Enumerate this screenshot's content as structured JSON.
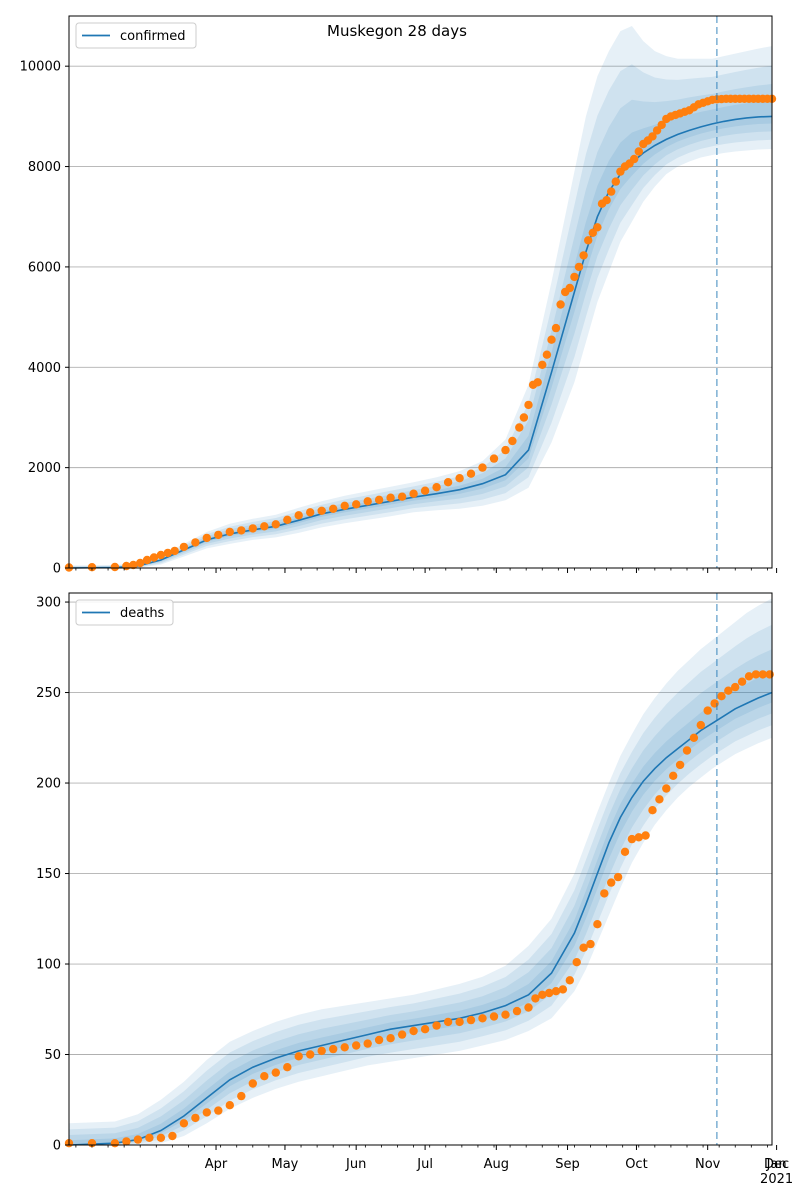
{
  "figure": {
    "title": "Muskegon 28 days"
  },
  "chart_data": [
    {
      "type": "line",
      "legend": [
        "confirmed"
      ],
      "legend_position": "top-left",
      "xlim": [
        0,
        306
      ],
      "ylim": [
        0,
        11000
      ],
      "yticks": [
        0,
        2000,
        4000,
        6000,
        8000,
        10000
      ],
      "grid": "y",
      "vline_x": 282,
      "x_tick_labels": [
        "Apr",
        "May",
        "Jun",
        "Jul",
        "Aug",
        "Sep",
        "Oct",
        "Nov",
        "Dec",
        "Jan\n2021"
      ],
      "fit": {
        "x": [
          0,
          20,
          30,
          40,
          50,
          60,
          70,
          80,
          90,
          100,
          110,
          120,
          130,
          140,
          150,
          160,
          170,
          180,
          190,
          200,
          210,
          220,
          225,
          230,
          235,
          240,
          245,
          250,
          255,
          260,
          265,
          270,
          275,
          280,
          285,
          290,
          295,
          300,
          306
        ],
        "y": [
          0,
          10,
          40,
          160,
          360,
          560,
          680,
          760,
          830,
          950,
          1080,
          1170,
          1250,
          1330,
          1410,
          1480,
          1560,
          1680,
          1860,
          2350,
          3900,
          5500,
          6300,
          7000,
          7500,
          7850,
          8080,
          8270,
          8420,
          8540,
          8640,
          8720,
          8790,
          8850,
          8900,
          8940,
          8970,
          8990,
          9000
        ],
        "band_outer_upper": [
          50,
          60,
          100,
          250,
          480,
          720,
          880,
          980,
          1060,
          1200,
          1330,
          1440,
          1530,
          1620,
          1710,
          1810,
          1930,
          2130,
          2560,
          3650,
          5700,
          7900,
          9000,
          9800,
          10300,
          10700,
          10800,
          10500,
          10300,
          10200,
          10150,
          10150,
          10150,
          10150,
          10200,
          10250,
          10300,
          10350,
          10400
        ],
        "band_outer_lower": [
          0,
          0,
          0,
          70,
          230,
          390,
          480,
          560,
          610,
          700,
          810,
          890,
          960,
          1030,
          1110,
          1150,
          1180,
          1240,
          1350,
          1600,
          2500,
          3700,
          4500,
          5300,
          5900,
          6500,
          6900,
          7300,
          7600,
          7850,
          8000,
          8100,
          8180,
          8230,
          8270,
          8300,
          8320,
          8340,
          8350
        ]
      },
      "observed": {
        "x": [
          0,
          10,
          20,
          25,
          28,
          31,
          34,
          37,
          40,
          43,
          46,
          50,
          55,
          60,
          65,
          70,
          75,
          80,
          85,
          90,
          95,
          100,
          105,
          110,
          115,
          120,
          125,
          130,
          135,
          140,
          145,
          150,
          155,
          160,
          165,
          170,
          175,
          180,
          185,
          190,
          193,
          196,
          198,
          200,
          202,
          204,
          206,
          208,
          210,
          212,
          214,
          216,
          218,
          220,
          222,
          224,
          226,
          228,
          230,
          232,
          234,
          236,
          238,
          240,
          242,
          244,
          246,
          248,
          250,
          252,
          254,
          256,
          258,
          260,
          262,
          264,
          266,
          268,
          270,
          272,
          274,
          276,
          278,
          280,
          282,
          284,
          286,
          288,
          290,
          292,
          294,
          296,
          298,
          300,
          302,
          304,
          306
        ],
        "y": [
          10,
          15,
          20,
          40,
          60,
          100,
          160,
          210,
          260,
          300,
          340,
          420,
          510,
          600,
          660,
          720,
          750,
          790,
          830,
          870,
          960,
          1050,
          1110,
          1140,
          1180,
          1240,
          1270,
          1330,
          1360,
          1400,
          1420,
          1480,
          1540,
          1610,
          1710,
          1790,
          1880,
          2000,
          2180,
          2350,
          2530,
          2800,
          3000,
          3250,
          3650,
          3700,
          4050,
          4250,
          4550,
          4780,
          5250,
          5500,
          5580,
          5800,
          6000,
          6230,
          6530,
          6680,
          6790,
          7260,
          7330,
          7500,
          7700,
          7900,
          8000,
          8060,
          8150,
          8300,
          8450,
          8520,
          8600,
          8720,
          8830,
          8950,
          9000,
          9030,
          9060,
          9090,
          9120,
          9180,
          9240,
          9270,
          9300,
          9330,
          9340,
          9345,
          9350,
          9350,
          9350,
          9350,
          9350,
          9350,
          9350,
          9350,
          9350,
          9350,
          9350
        ]
      }
    },
    {
      "type": "line",
      "legend": [
        "deaths"
      ],
      "legend_position": "top-left",
      "xlim": [
        0,
        306
      ],
      "ylim": [
        0,
        305
      ],
      "yticks": [
        0,
        50,
        100,
        150,
        200,
        250,
        300
      ],
      "grid": "y",
      "vline_x": 282,
      "x_tick_labels": [
        "Apr",
        "May",
        "Jun",
        "Jul",
        "Aug",
        "Sep",
        "Oct",
        "Nov",
        "Dec",
        "Jan\n2021"
      ],
      "fit": {
        "x": [
          0,
          20,
          30,
          40,
          50,
          60,
          70,
          80,
          90,
          100,
          110,
          120,
          130,
          140,
          150,
          160,
          170,
          180,
          190,
          200,
          210,
          220,
          225,
          230,
          235,
          240,
          245,
          250,
          255,
          260,
          265,
          270,
          275,
          280,
          285,
          290,
          295,
          300,
          306
        ],
        "y": [
          0,
          1,
          3,
          8,
          16,
          26,
          36,
          43,
          48,
          52,
          55,
          58,
          61,
          64,
          66,
          68,
          70,
          73,
          77,
          83,
          95,
          117,
          133,
          150,
          167,
          181,
          192,
          201,
          208,
          214,
          219,
          224,
          229,
          233,
          237,
          241,
          244,
          247,
          250
        ],
        "band_outer_upper": [
          12,
          13,
          17,
          25,
          35,
          47,
          57,
          63,
          68,
          72,
          75,
          77,
          79,
          81,
          83,
          86,
          89,
          93,
          99,
          110,
          125,
          150,
          167,
          184,
          200,
          215,
          227,
          238,
          247,
          255,
          262,
          268,
          274,
          279,
          284,
          289,
          294,
          298,
          302
        ],
        "band_outer_lower": [
          0,
          0,
          0,
          1,
          5,
          12,
          20,
          26,
          31,
          35,
          38,
          41,
          44,
          46,
          48,
          50,
          52,
          55,
          58,
          63,
          70,
          85,
          97,
          112,
          127,
          142,
          156,
          167,
          177,
          185,
          192,
          198,
          203,
          208,
          212,
          216,
          219,
          222,
          225
        ]
      },
      "observed": {
        "x": [
          0,
          10,
          20,
          25,
          30,
          35,
          40,
          45,
          50,
          55,
          60,
          65,
          70,
          75,
          80,
          85,
          90,
          95,
          100,
          105,
          110,
          115,
          120,
          125,
          130,
          135,
          140,
          145,
          150,
          155,
          160,
          165,
          170,
          175,
          180,
          185,
          190,
          195,
          200,
          203,
          206,
          209,
          212,
          215,
          218,
          221,
          224,
          227,
          230,
          233,
          236,
          239,
          242,
          245,
          248,
          251,
          254,
          257,
          260,
          263,
          266,
          269,
          272,
          275,
          278,
          281,
          284,
          287,
          290,
          293,
          296,
          299,
          302,
          305
        ],
        "y": [
          1,
          1,
          1,
          2,
          3,
          4,
          4,
          5,
          12,
          15,
          18,
          19,
          22,
          27,
          34,
          38,
          40,
          43,
          49,
          50,
          52,
          53,
          54,
          55,
          56,
          58,
          59,
          61,
          63,
          64,
          66,
          68,
          68,
          69,
          70,
          71,
          72,
          74,
          76,
          81,
          83,
          84,
          85,
          86,
          91,
          101,
          109,
          111,
          122,
          139,
          145,
          148,
          162,
          169,
          170,
          171,
          185,
          191,
          197,
          204,
          210,
          218,
          225,
          232,
          240,
          244,
          248,
          251,
          253,
          256,
          259,
          260,
          260,
          260
        ]
      }
    }
  ]
}
